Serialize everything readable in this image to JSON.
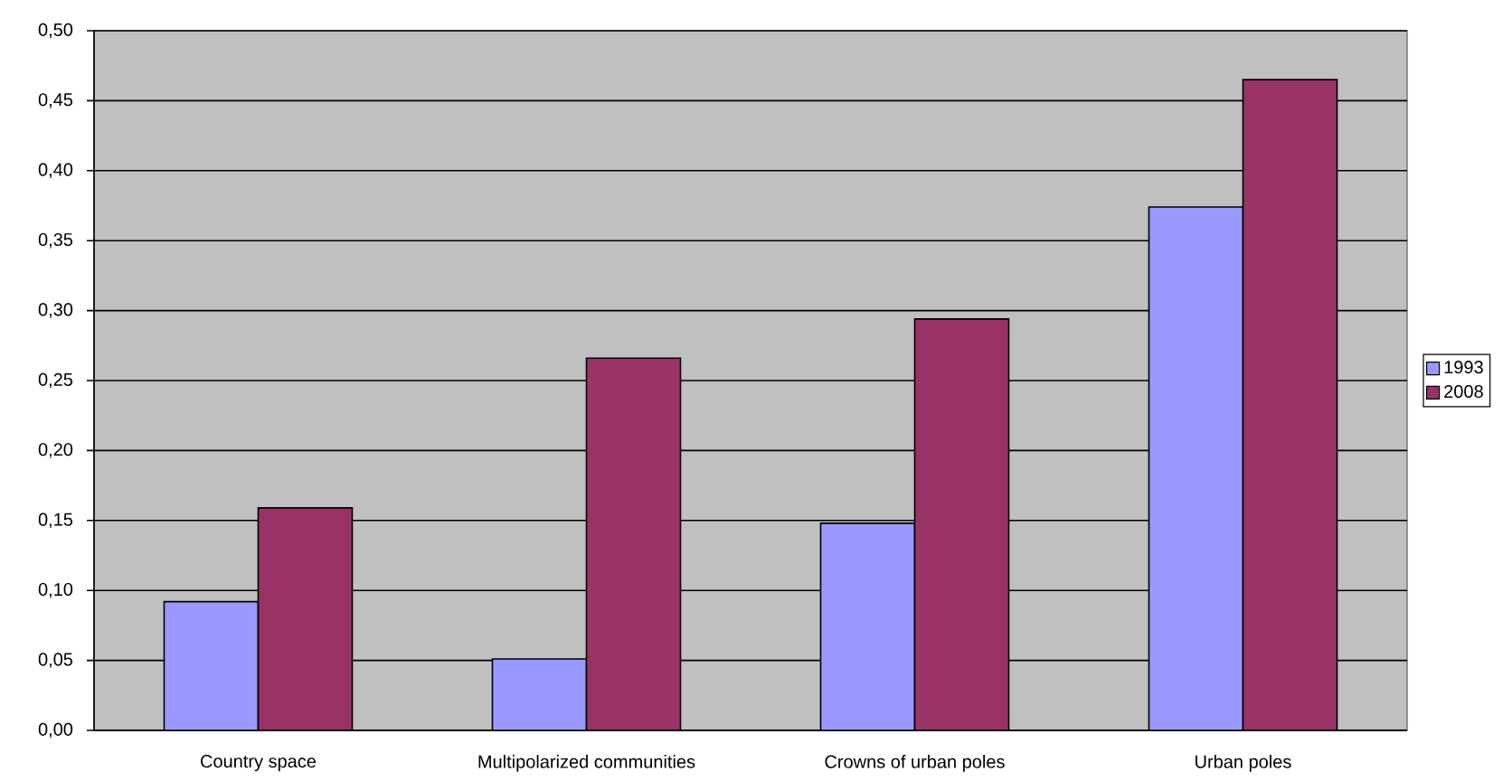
{
  "chart_data": {
    "type": "bar",
    "categories": [
      "Country space",
      "Multipolarized communities",
      "Crowns of urban poles",
      "Urban poles"
    ],
    "series": [
      {
        "name": "1993",
        "color": "#9999ff",
        "values": [
          0.092,
          0.051,
          0.148,
          0.374
        ]
      },
      {
        "name": "2008",
        "color": "#993366",
        "values": [
          0.159,
          0.266,
          0.294,
          0.465
        ]
      }
    ],
    "ylim": [
      0,
      0.5
    ],
    "yticks": [
      {
        "value": 0,
        "label": "0,00"
      },
      {
        "value": 0.05,
        "label": "0,05"
      },
      {
        "value": 0.1,
        "label": "0,10"
      },
      {
        "value": 0.15,
        "label": "0,15"
      },
      {
        "value": 0.2,
        "label": "0,20"
      },
      {
        "value": 0.25,
        "label": "0,25"
      },
      {
        "value": 0.3,
        "label": "0,30"
      },
      {
        "value": 0.35,
        "label": "0,35"
      },
      {
        "value": 0.4,
        "label": "0,40"
      },
      {
        "value": 0.45,
        "label": "0,45"
      },
      {
        "value": 0.5,
        "label": "0,50"
      }
    ],
    "grid": "y",
    "legend": "right"
  }
}
